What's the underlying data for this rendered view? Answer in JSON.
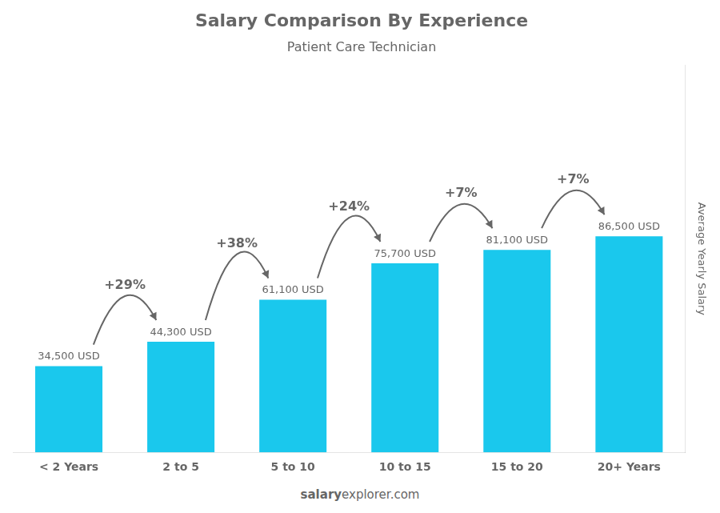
{
  "chart_data": {
    "type": "bar",
    "title": "Salary Comparison By Experience",
    "subtitle": "Patient Care Technician",
    "categories": [
      "< 2 Years",
      "2 to 5",
      "5 to 10",
      "10 to 15",
      "15 to 20",
      "20+ Years"
    ],
    "values": [
      34500,
      44300,
      61100,
      75700,
      81100,
      86500
    ],
    "value_labels": [
      "34,500 USD",
      "44,300 USD",
      "61,100 USD",
      "75,700 USD",
      "81,100 USD",
      "86,500 USD"
    ],
    "data_labels": true,
    "color": "#1ac8ed",
    "y_label": "Average Yearly Salary",
    "ylim": [
      0,
      155000
    ],
    "grid": false,
    "tick_labels": "x",
    "annotations": [
      {
        "text": "+29%",
        "from": "< 2 Years",
        "to": "2 to 5"
      },
      {
        "text": "+38%",
        "from": "2 to 5",
        "to": "5 to 10"
      },
      {
        "text": "+24%",
        "from": "5 to 10",
        "to": "10 to 15"
      },
      {
        "text": "+7%",
        "from": "10 to 15",
        "to": "15 to 20"
      },
      {
        "text": "+7%",
        "from": "15 to 20",
        "to": "20+ Years"
      }
    ],
    "footer": [
      "salary",
      "explorer.com"
    ]
  }
}
